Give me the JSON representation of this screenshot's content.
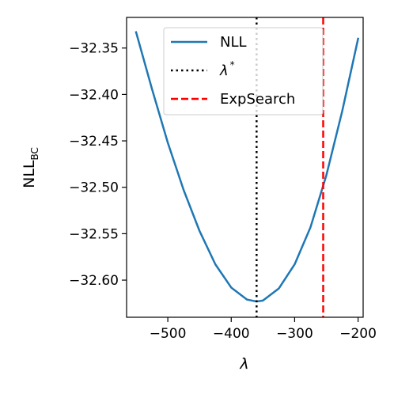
{
  "chart_data": {
    "type": "line",
    "xlabel": "λ",
    "ylabel_main": "NLL",
    "ylabel_sub": "BC",
    "xlim": [
      -565,
      -192
    ],
    "ylim": [
      -32.64,
      -32.317
    ],
    "xticks": [
      -500,
      -400,
      -300,
      -200
    ],
    "xtick_labels": [
      "−500",
      "−400",
      "−300",
      "−200"
    ],
    "yticks": [
      -32.35,
      -32.4,
      -32.45,
      -32.5,
      -32.55,
      -32.6
    ],
    "ytick_labels": [
      "−32.35",
      "−32.40",
      "−32.45",
      "−32.50",
      "−32.55",
      "−32.60"
    ],
    "grid": false,
    "legend_position": "top-right",
    "series": [
      {
        "name": "NLL",
        "color": "#1f77b4",
        "style": "solid",
        "x": [
          -550,
          -525,
          -500,
          -475,
          -450,
          -425,
          -400,
          -375,
          -360,
          -350,
          -325,
          -300,
          -275,
          -250,
          -225,
          -200
        ],
        "y": [
          -32.333,
          -32.394,
          -32.452,
          -32.503,
          -32.547,
          -32.583,
          -32.608,
          -32.621,
          -32.623,
          -32.622,
          -32.609,
          -32.583,
          -32.543,
          -32.487,
          -32.418,
          -32.34
        ]
      }
    ],
    "vlines": [
      {
        "name": "λ*",
        "name_main": "λ",
        "name_sup": "*",
        "x": -360,
        "color": "#000000",
        "style": "dotted"
      },
      {
        "name": "ExpSearch",
        "x": -255,
        "color": "#ff0000",
        "style": "dashed"
      }
    ]
  }
}
